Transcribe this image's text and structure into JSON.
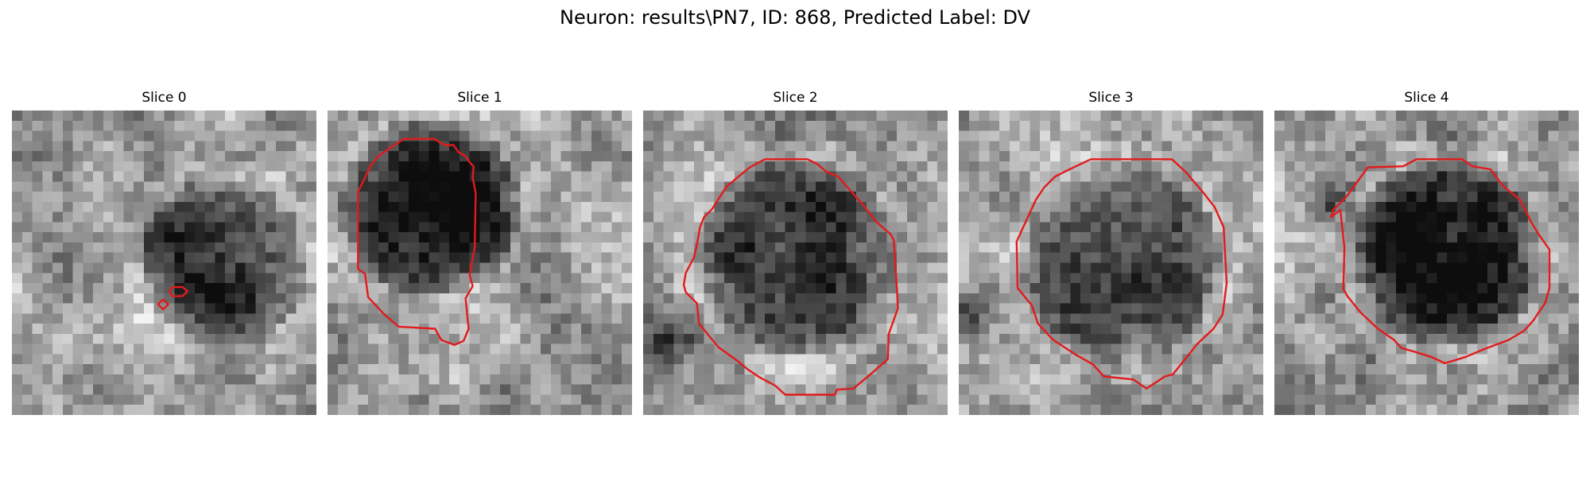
{
  "suptitle": "Neuron: results\\PN7, ID: 868, Predicted Label: DV",
  "contour_color": "#e31a1c",
  "grid_cells": 30,
  "panels": [
    {
      "title": "Slice 0"
    },
    {
      "title": "Slice 1"
    },
    {
      "title": "Slice 2"
    },
    {
      "title": "Slice 3"
    },
    {
      "title": "Slice 4"
    }
  ]
}
